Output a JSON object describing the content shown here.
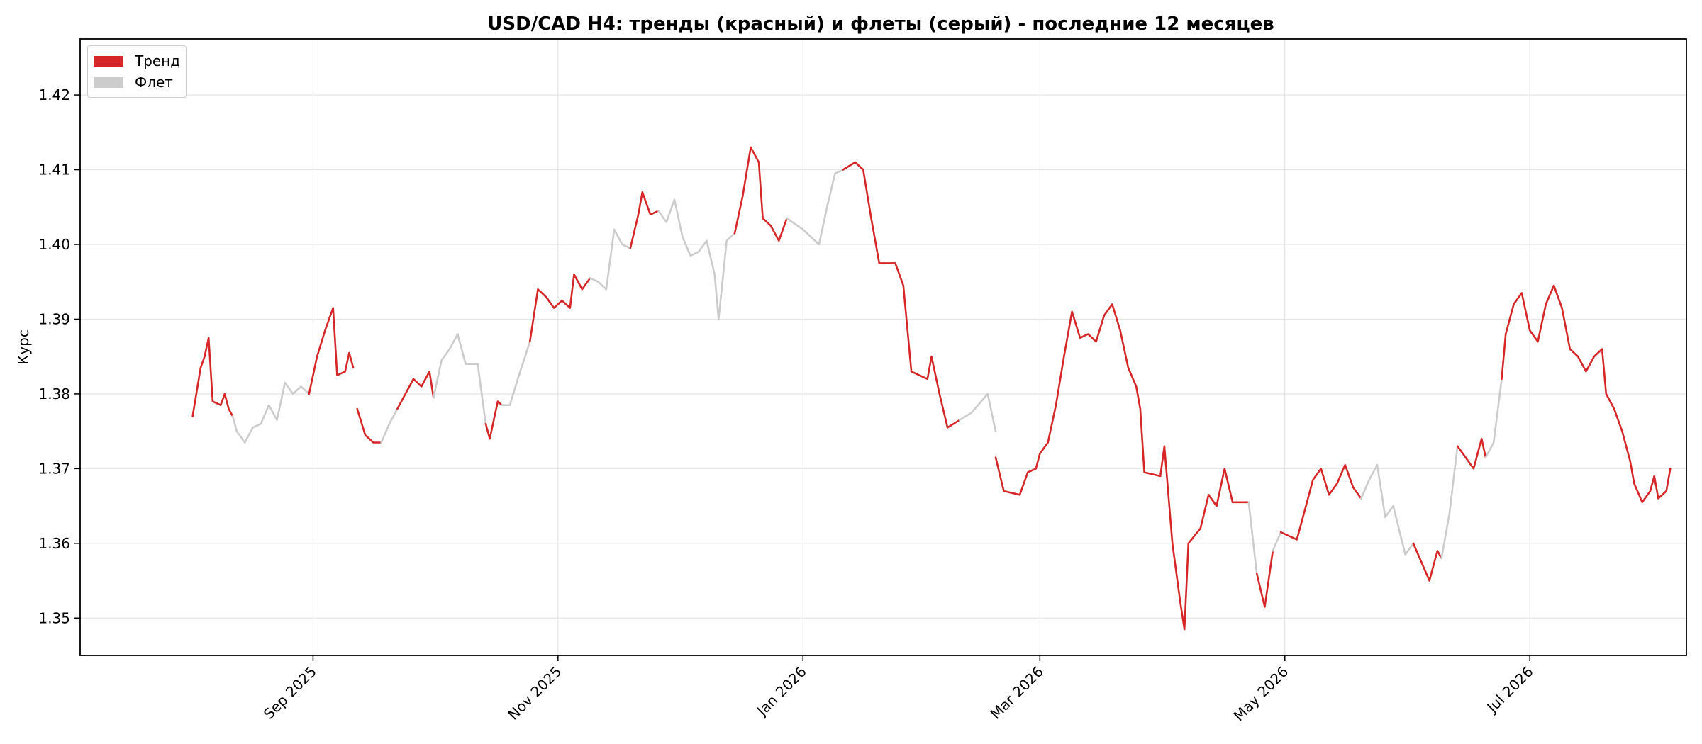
{
  "chart_data": {
    "type": "line",
    "title": "USD/CAD H4: тренды (красный) и флеты (серый) - последние 12 месяцев",
    "xlabel": "",
    "ylabel": "Курс",
    "x_ticks": [
      {
        "label": "Sep 2025",
        "date": "2025-09-01"
      },
      {
        "label": "Nov 2025",
        "date": "2025-11-01"
      },
      {
        "label": "Jan 2026",
        "date": "2026-01-01"
      },
      {
        "label": "Mar 2026",
        "date": "2026-03-01"
      },
      {
        "label": "May 2026",
        "date": "2026-05-01"
      },
      {
        "label": "Jul 2026",
        "date": "2026-07-01"
      }
    ],
    "y_ticks": [
      1.35,
      1.36,
      1.37,
      1.38,
      1.39,
      1.4,
      1.41,
      1.42
    ],
    "xlim": [
      "2025-07-05",
      "2026-08-09"
    ],
    "ylim": [
      1.345,
      1.4275
    ],
    "grid": true,
    "legend_position": "top-left",
    "legend": [
      {
        "name": "Тренд",
        "color": "#d62728"
      },
      {
        "name": "Флет",
        "color": "#cccccc"
      }
    ],
    "trend_color": "#d62728",
    "flat_color": "#cccccc",
    "series": [
      {
        "name": "Тренд",
        "points": [
          [
            "2025-08-02",
            1.377
          ],
          [
            "2025-08-04",
            1.3835
          ],
          [
            "2025-08-05",
            1.385
          ],
          [
            "2025-08-06",
            1.3875
          ],
          [
            "2025-08-07",
            1.379
          ],
          [
            "2025-08-09",
            1.3785
          ],
          [
            "2025-08-10",
            1.38
          ],
          [
            "2025-08-11",
            1.378
          ],
          [
            "2025-08-12",
            1.377
          ]
        ]
      },
      {
        "name": "Флет",
        "points": [
          [
            "2025-08-12",
            1.377
          ],
          [
            "2025-08-13",
            1.375
          ],
          [
            "2025-08-15",
            1.3735
          ],
          [
            "2025-08-17",
            1.3755
          ],
          [
            "2025-08-19",
            1.376
          ],
          [
            "2025-08-21",
            1.3785
          ],
          [
            "2025-08-23",
            1.3765
          ],
          [
            "2025-08-25",
            1.3815
          ],
          [
            "2025-08-27",
            1.38
          ],
          [
            "2025-08-29",
            1.381
          ],
          [
            "2025-08-31",
            1.38
          ]
        ]
      },
      {
        "name": "Тренд",
        "points": [
          [
            "2025-08-31",
            1.38
          ],
          [
            "2025-09-02",
            1.385
          ],
          [
            "2025-09-04",
            1.3885
          ],
          [
            "2025-09-06",
            1.3915
          ],
          [
            "2025-09-07",
            1.3825
          ],
          [
            "2025-09-09",
            1.383
          ],
          [
            "2025-09-10",
            1.3855
          ],
          [
            "2025-09-11",
            1.3835
          ]
        ]
      },
      {
        "name": "Тренд",
        "points": [
          [
            "2025-09-12",
            1.378
          ],
          [
            "2025-09-14",
            1.3745
          ],
          [
            "2025-09-16",
            1.3735
          ],
          [
            "2025-09-18",
            1.3735
          ]
        ]
      },
      {
        "name": "Флет",
        "points": [
          [
            "2025-09-18",
            1.3735
          ],
          [
            "2025-09-20",
            1.376
          ],
          [
            "2025-09-22",
            1.378
          ]
        ]
      },
      {
        "name": "Тренд",
        "points": [
          [
            "2025-09-22",
            1.378
          ],
          [
            "2025-09-24",
            1.38
          ],
          [
            "2025-09-26",
            1.382
          ],
          [
            "2025-09-28",
            1.381
          ],
          [
            "2025-09-30",
            1.383
          ],
          [
            "2025-10-01",
            1.3795
          ]
        ]
      },
      {
        "name": "Флет",
        "points": [
          [
            "2025-10-01",
            1.3795
          ],
          [
            "2025-10-03",
            1.3845
          ],
          [
            "2025-10-05",
            1.386
          ],
          [
            "2025-10-07",
            1.388
          ],
          [
            "2025-10-09",
            1.384
          ],
          [
            "2025-10-12",
            1.384
          ],
          [
            "2025-10-14",
            1.376
          ]
        ]
      },
      {
        "name": "Тренд",
        "points": [
          [
            "2025-10-14",
            1.376
          ],
          [
            "2025-10-15",
            1.374
          ],
          [
            "2025-10-17",
            1.379
          ],
          [
            "2025-10-18",
            1.3785
          ]
        ]
      },
      {
        "name": "Флет",
        "points": [
          [
            "2025-10-18",
            1.3785
          ],
          [
            "2025-10-20",
            1.3785
          ],
          [
            "2025-10-22",
            1.382
          ],
          [
            "2025-10-25",
            1.387
          ]
        ]
      },
      {
        "name": "Тренд",
        "points": [
          [
            "2025-10-25",
            1.387
          ],
          [
            "2025-10-27",
            1.394
          ],
          [
            "2025-10-29",
            1.393
          ],
          [
            "2025-10-31",
            1.3915
          ],
          [
            "2025-11-02",
            1.3925
          ],
          [
            "2025-11-04",
            1.3915
          ],
          [
            "2025-11-05",
            1.396
          ],
          [
            "2025-11-07",
            1.394
          ],
          [
            "2025-11-09",
            1.3955
          ]
        ]
      },
      {
        "name": "Флет",
        "points": [
          [
            "2025-11-09",
            1.3955
          ],
          [
            "2025-11-11",
            1.395
          ],
          [
            "2025-11-13",
            1.394
          ],
          [
            "2025-11-15",
            1.402
          ],
          [
            "2025-11-17",
            1.4
          ],
          [
            "2025-11-19",
            1.3995
          ]
        ]
      },
      {
        "name": "Тренд",
        "points": [
          [
            "2025-11-19",
            1.3995
          ],
          [
            "2025-11-21",
            1.404
          ],
          [
            "2025-11-22",
            1.407
          ],
          [
            "2025-11-24",
            1.404
          ],
          [
            "2025-11-26",
            1.4045
          ]
        ]
      },
      {
        "name": "Флет",
        "points": [
          [
            "2025-11-26",
            1.4045
          ],
          [
            "2025-11-28",
            1.403
          ],
          [
            "2025-11-30",
            1.406
          ],
          [
            "2025-12-02",
            1.401
          ],
          [
            "2025-12-04",
            1.3985
          ],
          [
            "2025-12-06",
            1.399
          ],
          [
            "2025-12-08",
            1.4005
          ],
          [
            "2025-12-10",
            1.396
          ],
          [
            "2025-12-11",
            1.39
          ],
          [
            "2025-12-13",
            1.4005
          ],
          [
            "2025-12-15",
            1.4015
          ]
        ]
      },
      {
        "name": "Тренд",
        "points": [
          [
            "2025-12-15",
            1.4015
          ],
          [
            "2025-12-17",
            1.4065
          ],
          [
            "2025-12-19",
            1.413
          ],
          [
            "2025-12-21",
            1.411
          ],
          [
            "2025-12-22",
            1.4035
          ],
          [
            "2025-12-24",
            1.4025
          ],
          [
            "2025-12-26",
            1.4005
          ],
          [
            "2025-12-28",
            1.4035
          ]
        ]
      },
      {
        "name": "Флет",
        "points": [
          [
            "2025-12-28",
            1.4035
          ],
          [
            "2026-01-01",
            1.402
          ],
          [
            "2026-01-05",
            1.4
          ],
          [
            "2026-01-07",
            1.405
          ],
          [
            "2026-01-09",
            1.4095
          ],
          [
            "2026-01-11",
            1.41
          ]
        ]
      },
      {
        "name": "Тренд",
        "points": [
          [
            "2026-01-11",
            1.41
          ],
          [
            "2026-01-14",
            1.411
          ],
          [
            "2026-01-16",
            1.41
          ],
          [
            "2026-01-18",
            1.4035
          ],
          [
            "2026-01-20",
            1.3975
          ],
          [
            "2026-01-24",
            1.3975
          ],
          [
            "2026-01-26",
            1.3945
          ],
          [
            "2026-01-28",
            1.383
          ],
          [
            "2026-02-01",
            1.382
          ],
          [
            "2026-02-02",
            1.385
          ],
          [
            "2026-02-04",
            1.38
          ],
          [
            "2026-02-06",
            1.3755
          ],
          [
            "2026-02-09",
            1.3765
          ]
        ]
      },
      {
        "name": "Флет",
        "points": [
          [
            "2026-02-09",
            1.3765
          ],
          [
            "2026-02-12",
            1.3775
          ],
          [
            "2026-02-16",
            1.38
          ],
          [
            "2026-02-18",
            1.375
          ]
        ]
      },
      {
        "name": "Тренд",
        "points": [
          [
            "2026-02-18",
            1.3715
          ],
          [
            "2026-02-20",
            1.367
          ],
          [
            "2026-02-24",
            1.3665
          ],
          [
            "2026-02-26",
            1.3695
          ],
          [
            "2026-02-28",
            1.37
          ],
          [
            "2026-03-01",
            1.372
          ],
          [
            "2026-03-03",
            1.3735
          ]
        ]
      },
      {
        "name": "Тренд",
        "points": [
          [
            "2026-03-03",
            1.3735
          ],
          [
            "2026-03-05",
            1.3785
          ],
          [
            "2026-03-07",
            1.385
          ],
          [
            "2026-03-09",
            1.391
          ],
          [
            "2026-03-11",
            1.3875
          ],
          [
            "2026-03-13",
            1.388
          ],
          [
            "2026-03-15",
            1.387
          ],
          [
            "2026-03-17",
            1.3905
          ],
          [
            "2026-03-19",
            1.392
          ],
          [
            "2026-03-21",
            1.3885
          ],
          [
            "2026-03-23",
            1.3835
          ],
          [
            "2026-03-25",
            1.381
          ],
          [
            "2026-03-26",
            1.378
          ],
          [
            "2026-03-27",
            1.3695
          ],
          [
            "2026-03-31",
            1.369
          ],
          [
            "2026-04-01",
            1.373
          ],
          [
            "2026-04-03",
            1.36
          ],
          [
            "2026-04-05",
            1.352
          ],
          [
            "2026-04-06",
            1.3485
          ],
          [
            "2026-04-07",
            1.36
          ],
          [
            "2026-04-10",
            1.362
          ],
          [
            "2026-04-12",
            1.3665
          ],
          [
            "2026-04-14",
            1.365
          ],
          [
            "2026-04-16",
            1.37
          ],
          [
            "2026-04-18",
            1.3655
          ],
          [
            "2026-04-22",
            1.3655
          ]
        ]
      },
      {
        "name": "Флет",
        "points": [
          [
            "2026-04-22",
            1.3655
          ],
          [
            "2026-04-24",
            1.356
          ]
        ]
      },
      {
        "name": "Тренд",
        "points": [
          [
            "2026-04-24",
            1.356
          ],
          [
            "2026-04-26",
            1.3515
          ],
          [
            "2026-04-28",
            1.359
          ]
        ]
      },
      {
        "name": "Флет",
        "points": [
          [
            "2026-04-28",
            1.359
          ],
          [
            "2026-04-30",
            1.3615
          ]
        ]
      },
      {
        "name": "Тренд",
        "points": [
          [
            "2026-04-30",
            1.3615
          ],
          [
            "2026-05-04",
            1.3605
          ],
          [
            "2026-05-06",
            1.3645
          ],
          [
            "2026-05-08",
            1.3685
          ],
          [
            "2026-05-10",
            1.37
          ],
          [
            "2026-05-12",
            1.3665
          ],
          [
            "2026-05-14",
            1.368
          ],
          [
            "2026-05-16",
            1.3705
          ],
          [
            "2026-05-18",
            1.3675
          ],
          [
            "2026-05-20",
            1.366
          ]
        ]
      },
      {
        "name": "Флет",
        "points": [
          [
            "2026-05-20",
            1.366
          ],
          [
            "2026-05-22",
            1.3685
          ],
          [
            "2026-05-24",
            1.3705
          ],
          [
            "2026-05-26",
            1.3635
          ],
          [
            "2026-05-28",
            1.365
          ],
          [
            "2026-05-31",
            1.3585
          ],
          [
            "2026-06-02",
            1.36
          ]
        ]
      },
      {
        "name": "Тренд",
        "points": [
          [
            "2026-06-02",
            1.36
          ],
          [
            "2026-06-04",
            1.3575
          ],
          [
            "2026-06-06",
            1.355
          ],
          [
            "2026-06-08",
            1.359
          ],
          [
            "2026-06-09",
            1.358
          ]
        ]
      },
      {
        "name": "Флет",
        "points": [
          [
            "2026-06-09",
            1.358
          ],
          [
            "2026-06-11",
            1.364
          ],
          [
            "2026-06-13",
            1.373
          ]
        ]
      },
      {
        "name": "Тренд",
        "points": [
          [
            "2026-06-13",
            1.373
          ],
          [
            "2026-06-15",
            1.3715
          ],
          [
            "2026-06-17",
            1.37
          ],
          [
            "2026-06-19",
            1.374
          ],
          [
            "2026-06-20",
            1.3715
          ]
        ]
      },
      {
        "name": "Флет",
        "points": [
          [
            "2026-06-20",
            1.3715
          ],
          [
            "2026-06-22",
            1.3735
          ],
          [
            "2026-06-24",
            1.382
          ]
        ]
      },
      {
        "name": "Тренд",
        "points": [
          [
            "2026-06-24",
            1.382
          ],
          [
            "2026-06-25",
            1.388
          ],
          [
            "2026-06-27",
            1.392
          ],
          [
            "2026-06-29",
            1.3935
          ],
          [
            "2026-07-01",
            1.3885
          ],
          [
            "2026-07-03",
            1.387
          ],
          [
            "2026-07-05",
            1.392
          ],
          [
            "2026-07-07",
            1.3945
          ],
          [
            "2026-07-09",
            1.3915
          ],
          [
            "2026-07-11",
            1.386
          ],
          [
            "2026-07-13",
            1.385
          ],
          [
            "2026-07-15",
            1.383
          ],
          [
            "2026-07-17",
            1.385
          ],
          [
            "2026-07-19",
            1.386
          ],
          [
            "2026-07-20",
            1.38
          ],
          [
            "2026-07-22",
            1.378
          ],
          [
            "2026-07-24",
            1.375
          ],
          [
            "2026-07-26",
            1.371
          ],
          [
            "2026-07-27",
            1.368
          ],
          [
            "2026-07-29",
            1.3655
          ],
          [
            "2026-07-31",
            1.367
          ],
          [
            "2026-08-01",
            1.369
          ],
          [
            "2026-08-02",
            1.366
          ],
          [
            "2026-08-04",
            1.367
          ],
          [
            "2026-08-05",
            1.37
          ]
        ]
      }
    ]
  }
}
